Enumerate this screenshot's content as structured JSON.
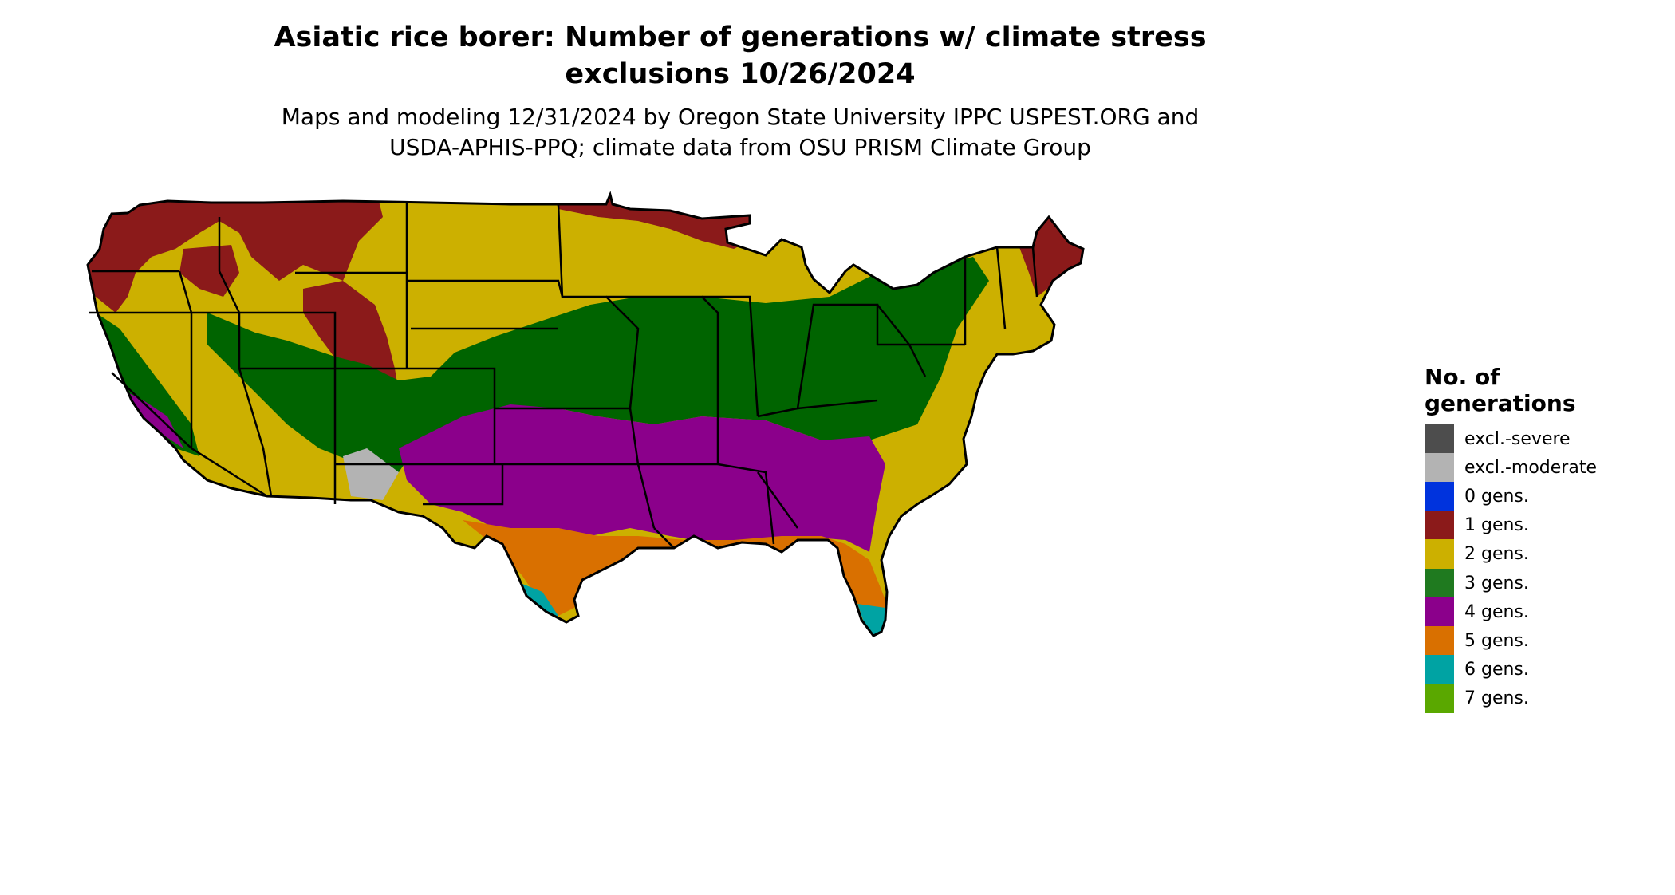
{
  "header": {
    "title_line1": "Asiatic rice borer: Number of generations w/ climate stress",
    "title_line2": "exclusions 10/26/2024",
    "subtitle_line1": "Maps and modeling 12/31/2024 by Oregon State University IPPC USPEST.ORG and",
    "subtitle_line2": "USDA-APHIS-PPQ; climate data from OSU PRISM Climate Group"
  },
  "legend": {
    "title_line1": "No. of",
    "title_line2": "generations",
    "items": [
      {
        "label": "excl.-severe",
        "color": "#4d4d4d"
      },
      {
        "label": "excl.-moderate",
        "color": "#b3b3b3"
      },
      {
        "label": "0 gens.",
        "color": "#0033dd"
      },
      {
        "label": "1 gens.",
        "color": "#8b1a1a"
      },
      {
        "label": "2 gens.",
        "color": "#ccb000"
      },
      {
        "label": "3 gens.",
        "color": "#1f7a1f"
      },
      {
        "label": "4 gens.",
        "color": "#8b008b"
      },
      {
        "label": "5 gens.",
        "color": "#d97000"
      },
      {
        "label": "6 gens.",
        "color": "#00a3a3"
      },
      {
        "label": "7 gens.",
        "color": "#5aa800"
      }
    ]
  }
}
